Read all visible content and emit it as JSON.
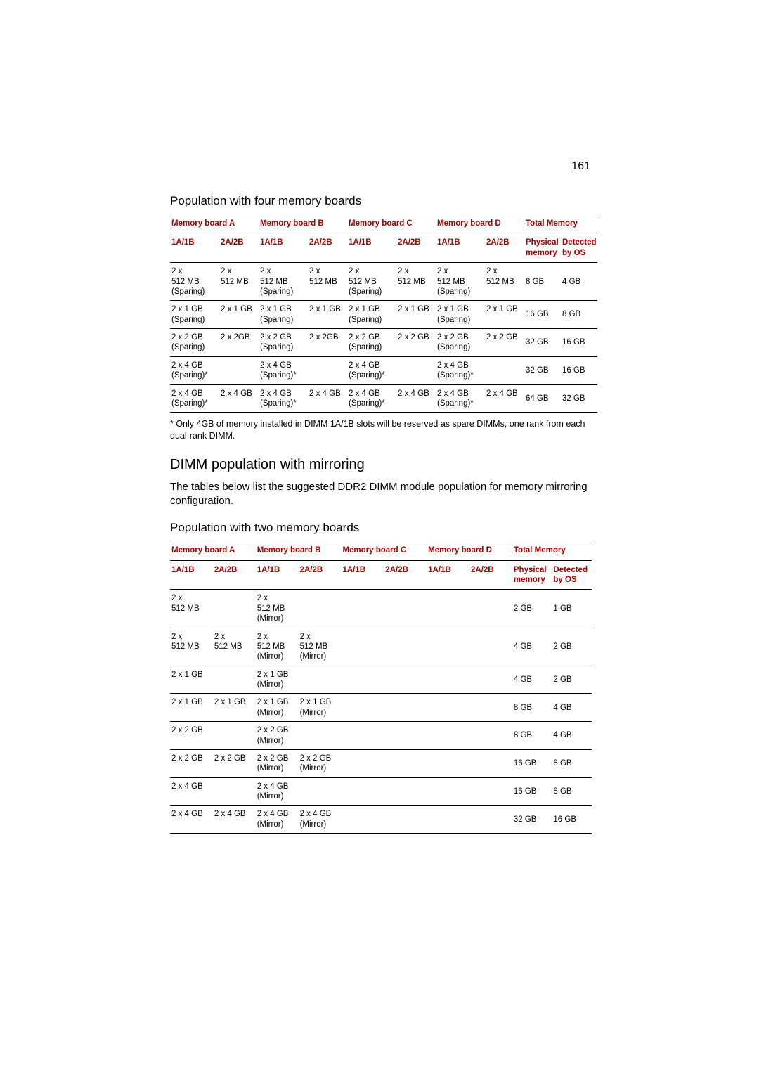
{
  "page_number": "161",
  "colors": {
    "text": "#000000",
    "accent": "#a30000",
    "rule": "#000000",
    "background": "#ffffff"
  },
  "typography": {
    "body_font": "Segoe UI / Helvetica Neue / Arial",
    "page_number_size_pt": 12,
    "subheading_size_pt": 13,
    "section_heading_size_pt": 15,
    "body_text_size_pt": 11,
    "footnote_size_pt": 9,
    "table_text_size_pt": 8.5
  },
  "section1": {
    "title": "Population with four memory boards"
  },
  "table_labels": {
    "boardA": "Memory board A",
    "boardB": "Memory board B",
    "boardC": "Memory board C",
    "boardD": "Memory board D",
    "total": "Total Memory",
    "slot1": "1A/1B",
    "slot2": "2A/2B",
    "phys": "Physical memory",
    "det": "Detected by OS"
  },
  "table1": {
    "columns": [
      "1A/1B",
      "2A/2B",
      "1A/1B",
      "2A/2B",
      "1A/1B",
      "2A/2B",
      "1A/1B",
      "2A/2B",
      "Physical memory",
      "Detected by OS"
    ],
    "groups": [
      "Memory board A",
      "Memory board B",
      "Memory board C",
      "Memory board D",
      "Total Memory"
    ],
    "rows": [
      {
        "c": [
          "2 x 512 MB (Sparing)",
          "2 x 512 MB",
          "2 x 512 MB (Sparing)",
          "2 x 512 MB",
          "2 x 512 MB (Sparing)",
          "2 x 512 MB",
          "2 x 512 MB (Sparing)",
          "2 x 512 MB",
          "8 GB",
          "4 GB"
        ]
      },
      {
        "c": [
          "2 x 1 GB (Sparing)",
          "2 x 1 GB",
          "2 x 1 GB (Sparing)",
          "2 x 1 GB",
          "2 x 1 GB (Sparing)",
          "2 x 1 GB",
          "2 x 1 GB (Sparing)",
          "2 x 1 GB",
          "16 GB",
          "8 GB"
        ]
      },
      {
        "c": [
          "2 x 2 GB (Sparing)",
          "2 x 2GB",
          "2 x 2 GB (Sparing)",
          "2 x 2GB",
          "2 x 2 GB (Sparing)",
          "2 x 2 GB",
          "2 x 2 GB (Sparing)",
          "2 x 2 GB",
          "32 GB",
          "16 GB"
        ]
      },
      {
        "c": [
          "2 x 4 GB (Sparing)*",
          "",
          "2 x 4 GB (Sparing)*",
          "",
          "2 x 4 GB (Sparing)*",
          "",
          "2 x 4 GB (Sparing)*",
          "",
          "32 GB",
          "16 GB"
        ]
      },
      {
        "c": [
          "2 x 4 GB (Sparing)*",
          "2 x 4 GB",
          "2 x 4 GB (Sparing)*",
          "2 x 4 GB",
          "2 x 4 GB (Sparing)*",
          "2 x 4 GB",
          "2 x 4 GB (Sparing)*",
          "2 x 4 GB",
          "64 GB",
          "32 GB"
        ]
      }
    ]
  },
  "footnote1": "* Only 4GB of memory installed in DIMM 1A/1B slots will be reserved as spare DIMMs, one rank from each dual-rank DIMM.",
  "section2": {
    "title": "DIMM population with mirroring",
    "body": "The tables below list the suggested DDR2 DIMM module population for memory mirroring configuration."
  },
  "section3": {
    "title": "Population with two memory boards"
  },
  "table2": {
    "columns": [
      "1A/1B",
      "2A/2B",
      "1A/1B",
      "2A/2B",
      "1A/1B",
      "2A/2B",
      "1A/1B",
      "2A/2B",
      "Physical memory",
      "Detected by OS"
    ],
    "groups": [
      "Memory board A",
      "Memory board B",
      "Memory board C",
      "Memory board D",
      "Total Memory"
    ],
    "rows": [
      {
        "c": [
          "2 x 512 MB",
          "",
          "2 x 512 MB (Mirror)",
          "",
          "",
          "",
          "",
          "",
          "2 GB",
          "1 GB"
        ]
      },
      {
        "c": [
          "2 x 512 MB",
          "2 x 512 MB",
          "2 x 512 MB (Mirror)",
          "2 x 512 MB (Mirror)",
          "",
          "",
          "",
          "",
          "4 GB",
          "2 GB"
        ]
      },
      {
        "c": [
          "2 x 1 GB",
          "",
          "2 x 1 GB (Mirror)",
          "",
          "",
          "",
          "",
          "",
          "4 GB",
          "2 GB"
        ]
      },
      {
        "c": [
          "2 x 1 GB",
          "2 x 1 GB",
          "2 x 1 GB (Mirror)",
          "2 x 1 GB (Mirror)",
          "",
          "",
          "",
          "",
          "8 GB",
          "4 GB"
        ]
      },
      {
        "c": [
          "2 x 2 GB",
          "",
          "2 x 2 GB (Mirror)",
          "",
          "",
          "",
          "",
          "",
          "8 GB",
          "4 GB"
        ]
      },
      {
        "c": [
          "2 x 2 GB",
          "2 x 2 GB",
          "2 x 2 GB (Mirror)",
          "2 x 2 GB (Mirror)",
          "",
          "",
          "",
          "",
          "16 GB",
          "8 GB"
        ]
      },
      {
        "c": [
          "2 x 4 GB",
          "",
          "2 x 4 GB (Mirror)",
          "",
          "",
          "",
          "",
          "",
          "16 GB",
          "8 GB"
        ]
      },
      {
        "c": [
          "2 x 4 GB",
          "2 x 4 GB",
          "2 x 4 GB (Mirror)",
          "2 x 4 GB (Mirror)",
          "",
          "",
          "",
          "",
          "32 GB",
          "16 GB"
        ]
      }
    ]
  }
}
